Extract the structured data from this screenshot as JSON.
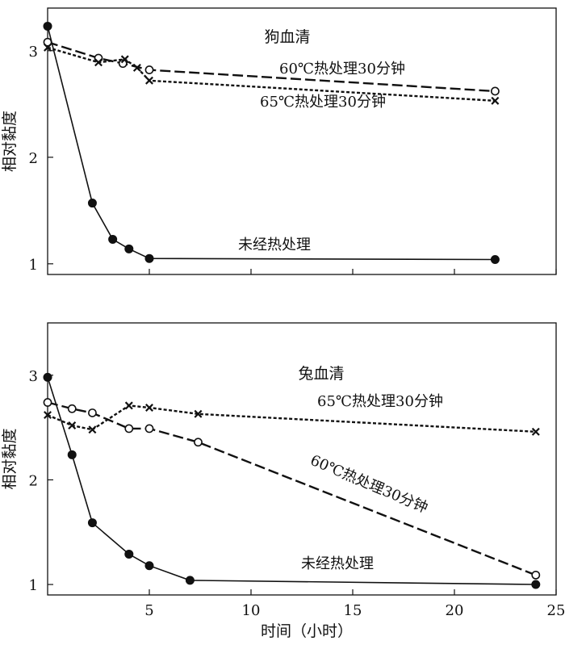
{
  "x_axis": {
    "label": "时间（小时）",
    "ticks": [
      5,
      10,
      15,
      20,
      25
    ],
    "range": [
      0,
      25
    ]
  },
  "chart_data": [
    {
      "type": "line",
      "title": "狗血清",
      "ylabel": "相对黏度",
      "ylim": [
        0.9,
        3.4
      ],
      "yticks": [
        1,
        2,
        3
      ],
      "series": [
        {
          "name": "未经热处理",
          "marker": "filled-circle",
          "line": "solid",
          "x": [
            0,
            2.2,
            3.2,
            4,
            5,
            22
          ],
          "y": [
            3.23,
            1.57,
            1.23,
            1.14,
            1.05,
            1.04
          ]
        },
        {
          "name": "60℃热处理30分钟",
          "marker": "open-circle",
          "line": "dashed",
          "x": [
            0,
            2.5,
            3.7,
            5,
            22
          ],
          "y": [
            3.08,
            2.93,
            2.88,
            2.82,
            2.62
          ]
        },
        {
          "name": "65℃热处理30分钟",
          "marker": "cross",
          "line": "dotted",
          "x": [
            0,
            2.5,
            3.8,
            4.4,
            5,
            22
          ],
          "y": [
            3.03,
            2.89,
            2.92,
            2.84,
            2.72,
            2.53
          ]
        }
      ]
    },
    {
      "type": "line",
      "title": "兔血清",
      "ylabel": "相对黏度",
      "ylim": [
        0.9,
        3.5
      ],
      "yticks": [
        1,
        2,
        3
      ],
      "series": [
        {
          "name": "未经热处理",
          "marker": "filled-circle",
          "line": "solid",
          "x": [
            0,
            1.2,
            2.2,
            4,
            5,
            7,
            24
          ],
          "y": [
            2.98,
            2.24,
            1.59,
            1.29,
            1.18,
            1.04,
            1.0
          ]
        },
        {
          "name": "60℃热处理30分钟",
          "marker": "open-circle",
          "line": "dashed",
          "x": [
            0,
            1.2,
            2.2,
            4,
            5,
            7.4,
            24
          ],
          "y": [
            2.74,
            2.68,
            2.64,
            2.49,
            2.49,
            2.36,
            1.09
          ]
        },
        {
          "name": "65℃热处理30分钟",
          "marker": "cross",
          "line": "dotted",
          "x": [
            0,
            1.2,
            2.2,
            4,
            5,
            7.4,
            24
          ],
          "y": [
            2.62,
            2.52,
            2.48,
            2.71,
            2.69,
            2.63,
            2.46
          ]
        }
      ]
    }
  ]
}
